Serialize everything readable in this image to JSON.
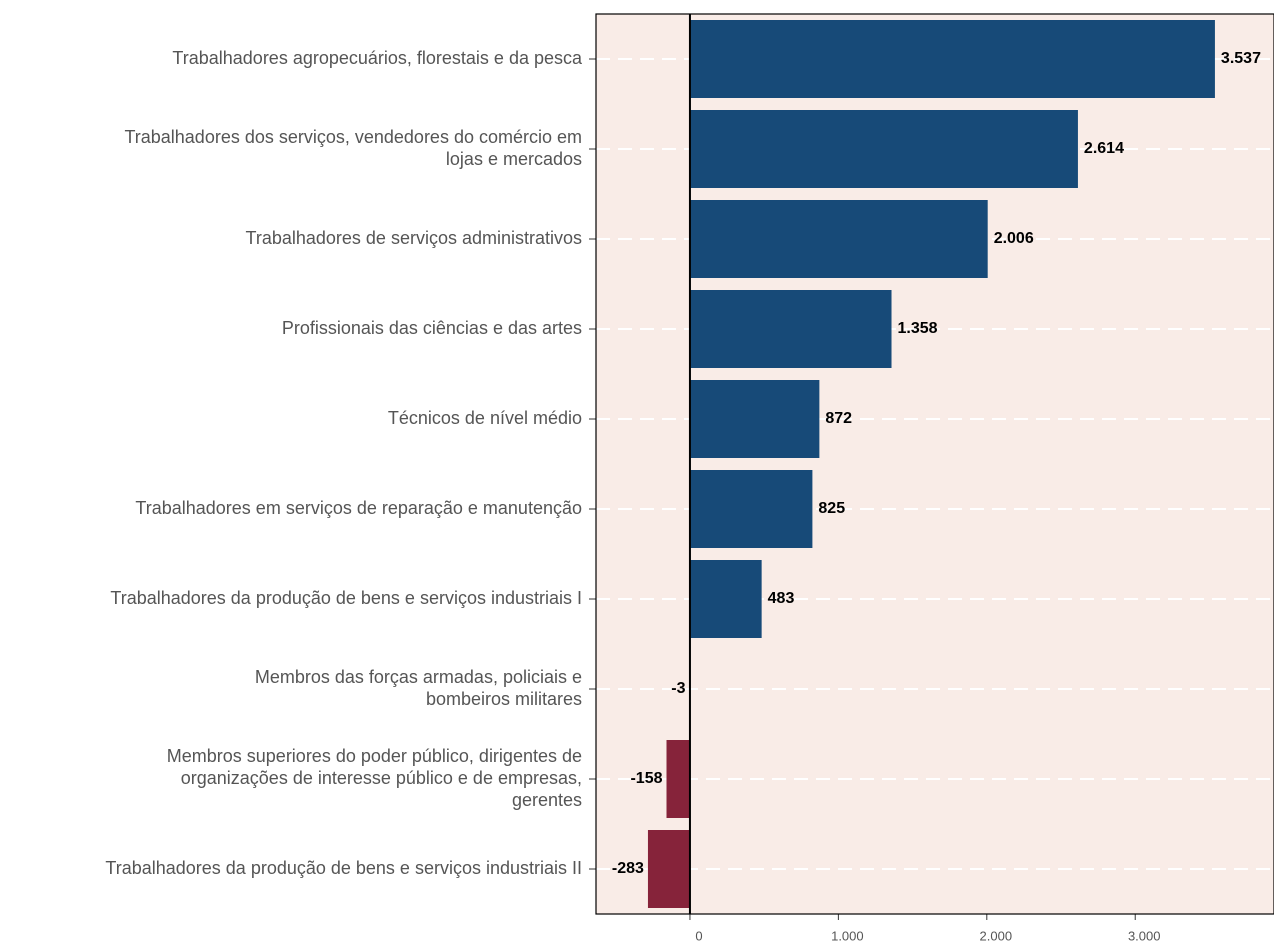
{
  "chart_data": {
    "type": "bar",
    "orientation": "horizontal",
    "categories": [
      "Trabalhadores agropecuários, florestais e da pesca",
      "Trabalhadores dos serviços, vendedores do comércio em\nlojas e mercados",
      "Trabalhadores de serviços administrativos",
      "Profissionais das ciências e das artes",
      "Técnicos de nível médio",
      "Trabalhadores em serviços de reparação e manutenção",
      "Trabalhadores da produção de bens e serviços industriais I",
      "Membros das forças armadas, policiais e\nbombeiros militares",
      "Membros superiores do poder público, dirigentes de\norganizações de interesse público e de empresas,\ngerentes",
      "Trabalhadores da produção de bens e serviços industriais II"
    ],
    "values": [
      3537,
      2614,
      2006,
      1358,
      872,
      825,
      483,
      -3,
      -158,
      -283
    ],
    "value_labels": [
      "3.537",
      "2.614",
      "2.006",
      "1.358",
      "872",
      "825",
      "483",
      "-3",
      "-158",
      "-283"
    ],
    "colors": [
      "#174a78",
      "#174a78",
      "#174a78",
      "#174a78",
      "#174a78",
      "#174a78",
      "#174a78",
      "#86233a",
      "#86233a",
      "#86233a"
    ],
    "xlim": [
      -633,
      3935
    ],
    "xticks": [
      0,
      {
        "value": 1000,
        "label": "1.000"
      },
      {
        "value": 2000,
        "label": "2.000"
      },
      {
        "value": 3000,
        "label": "3.000"
      }
    ],
    "background": "#f9ece7",
    "grid": true
  }
}
